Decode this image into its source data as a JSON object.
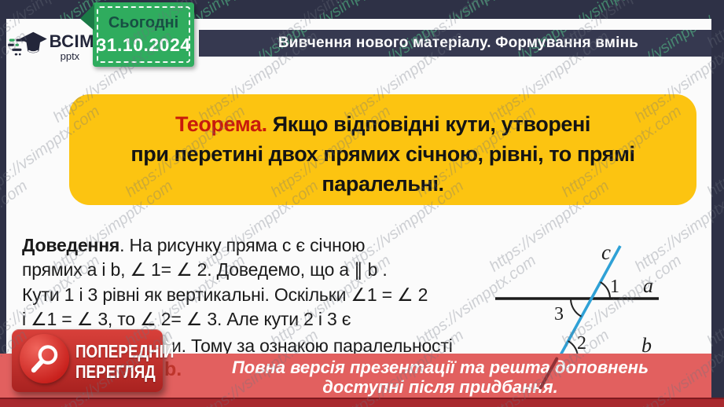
{
  "watermark": {
    "text": "https://vsimpptx.com"
  },
  "logo": {
    "brand": "ВСІМ",
    "sub": "pptx"
  },
  "date_badge": {
    "label": "Сьогодні",
    "date": "31.10.2024"
  },
  "header": {
    "title": "Вивчення нового матеріалу. Формування вмінь"
  },
  "theorem": {
    "label": "Теорема.",
    "line1": " Якщо відповідні кути, утворені",
    "line2": "при перетині двох прямих січною, рівні, то прямі",
    "line3": "паралельні."
  },
  "proof": {
    "label": "Доведення",
    "line1_rest": ". На рисунку  пряма c є січною",
    "line2": "прямих a і b, ∠ 1= ∠ 2. Доведемо, що a ∥ b .",
    "line3": "Кути 1 і 3 рівні як вертикальні. Оскільки ∠1 = ∠ 2",
    "line4": "і ∠1 = ∠ 3, то ∠ 2= ∠ 3. Але кути 2 і 3 є",
    "line5": "и. Тому за ознакою паралельності",
    "line6": "b."
  },
  "diagram": {
    "label_a": "a",
    "label_b": "b",
    "label_c": "c",
    "angle_1": "1",
    "angle_2": "2",
    "angle_3": "3"
  },
  "preview_badge": {
    "line1": "ПОПЕРЕДНІЙ",
    "line2": "ПЕРЕГЛЯД"
  },
  "banner": {
    "line1": "Повна версія презентації та решта доповнень",
    "line2": "доступні після придбання."
  },
  "colors": {
    "navy": "#2e3146",
    "title_bar": "#363950",
    "badge_green": "#2fac5e",
    "theorem_yellow": "#fcc411",
    "theorem_red": "#c81a0c",
    "banner_red": "#e2605f",
    "bottom_bar_red": "#a8292e",
    "preview_red": "#c8201c",
    "line_c_blue": "#2fa1d6",
    "line_b_maroon": "#7c282b"
  }
}
